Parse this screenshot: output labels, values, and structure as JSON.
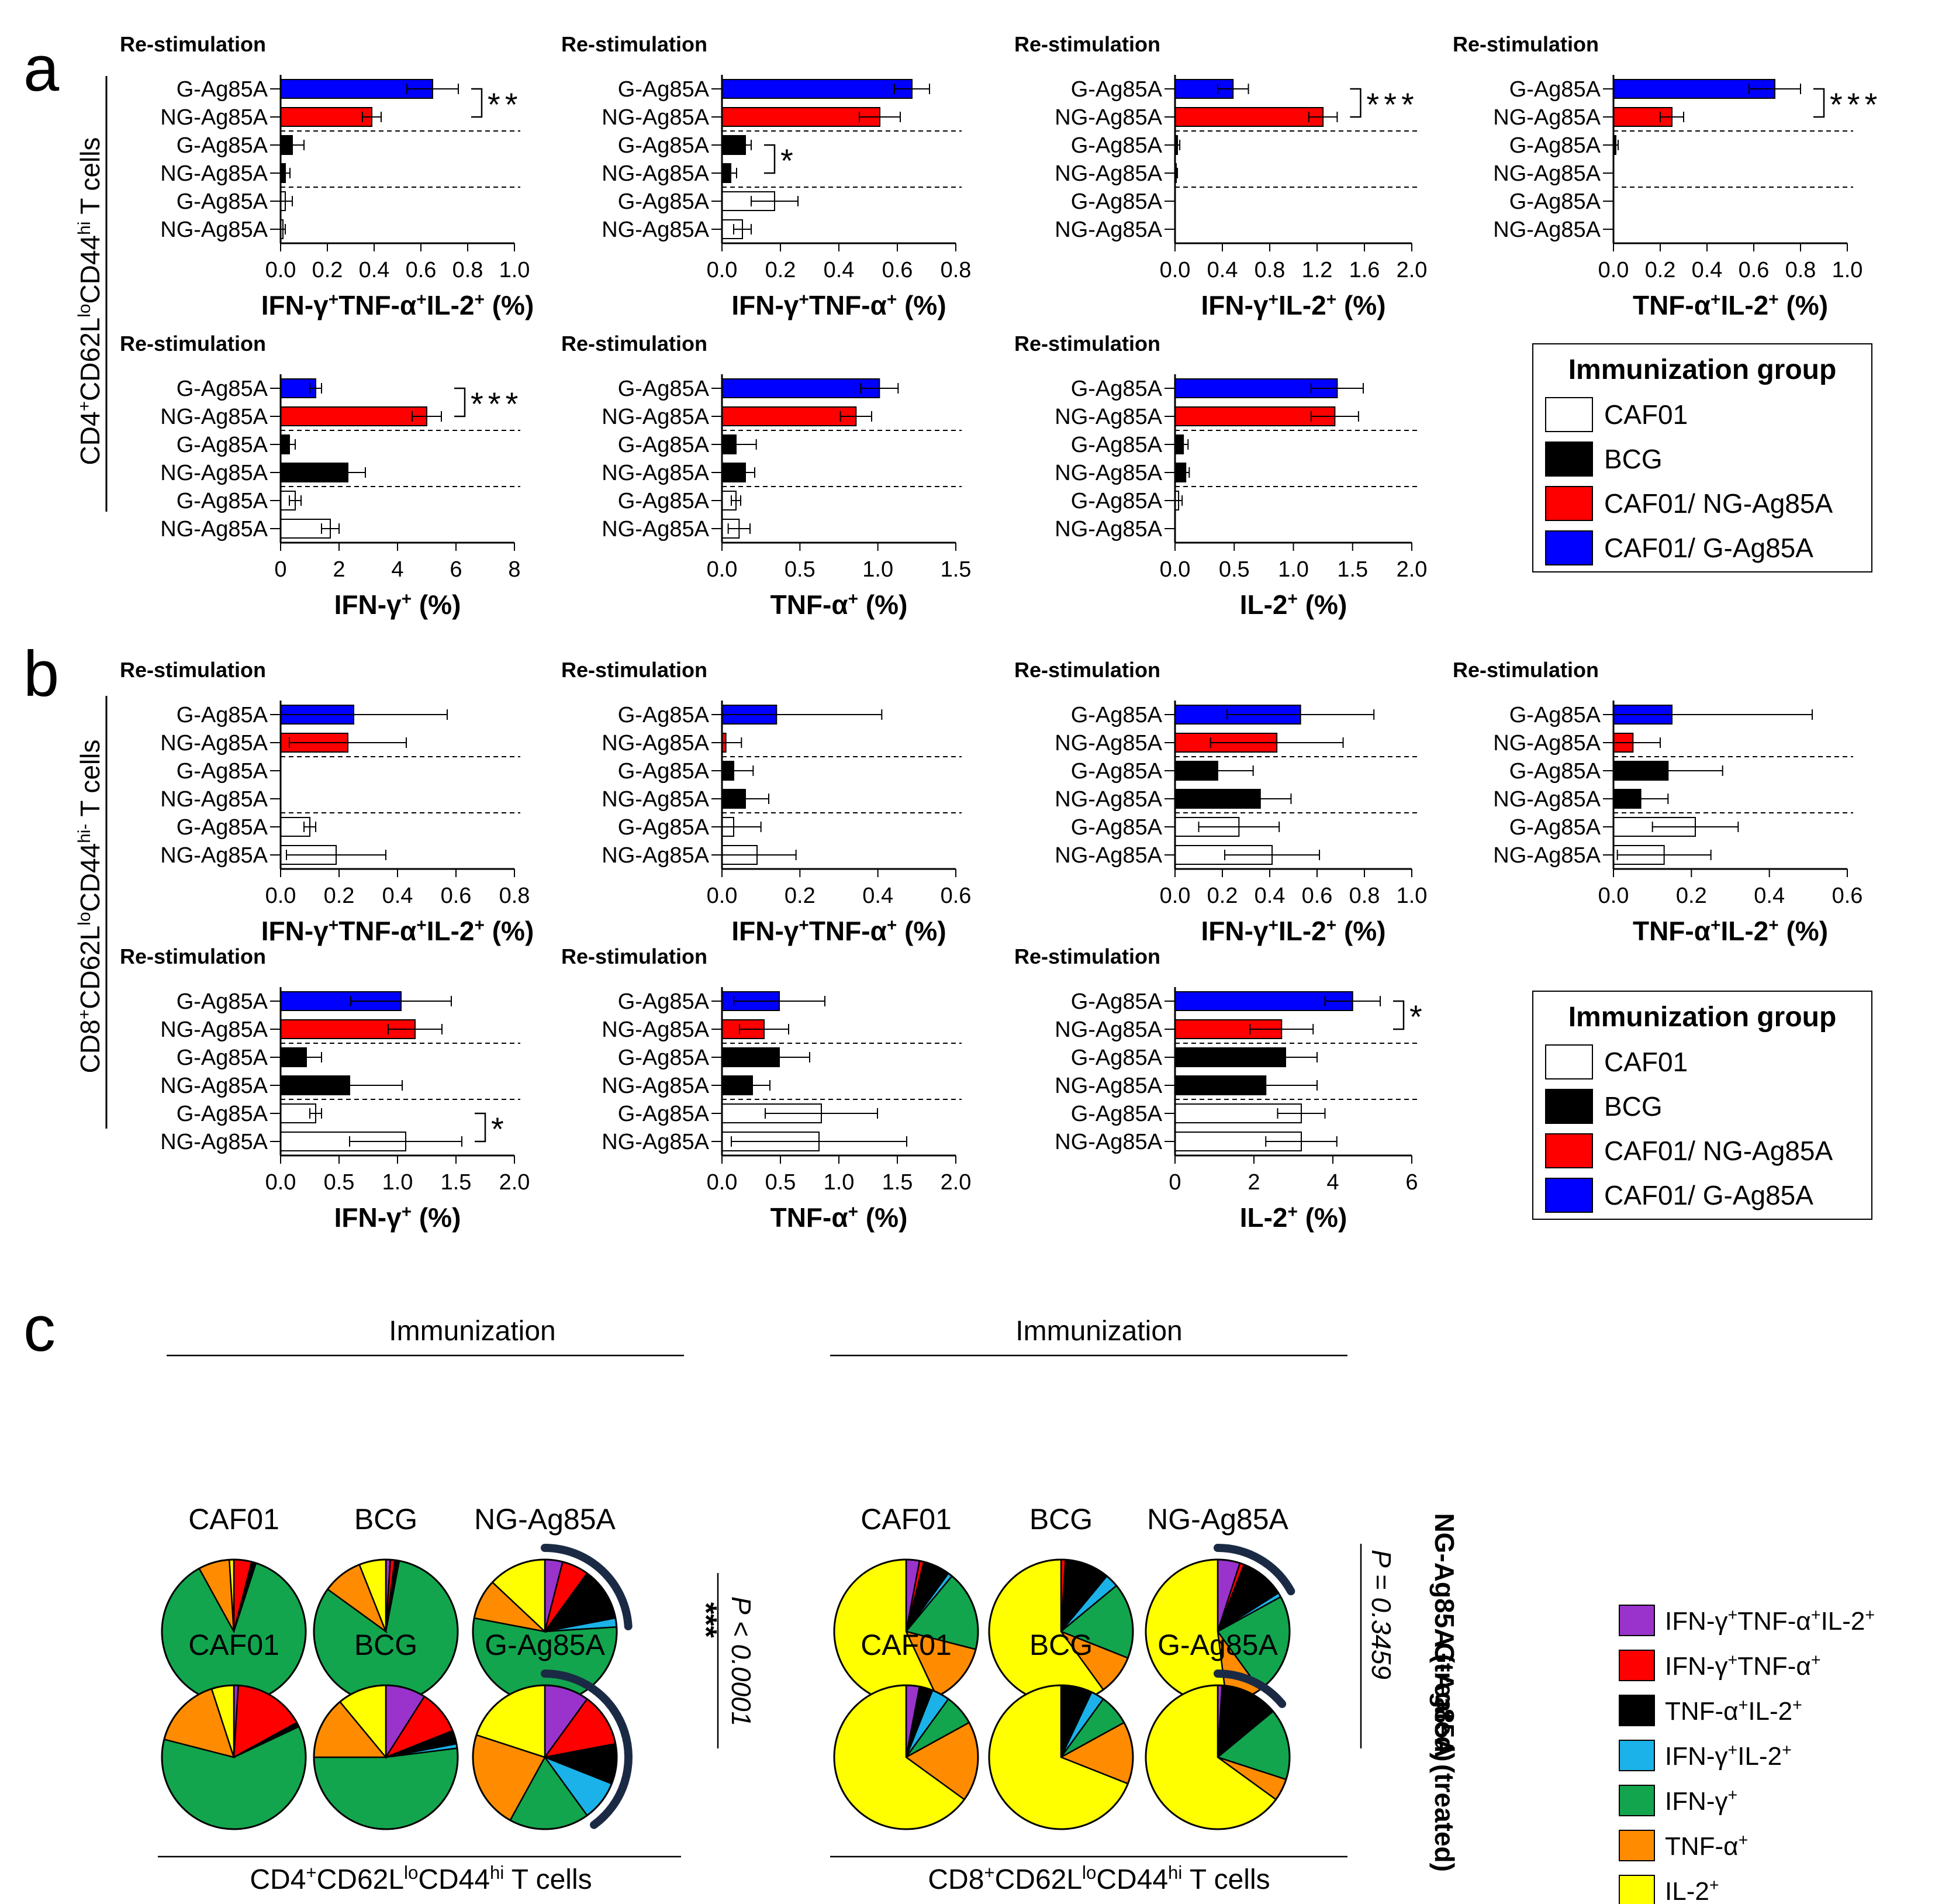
{
  "panel_labels": {
    "a": "a",
    "b": "b",
    "c": "c"
  },
  "common": {
    "restim_title": "Re-stimulation",
    "row_labels": [
      "G-Ag85A",
      "NG-Ag85A",
      "G-Ag85A",
      "NG-Ag85A",
      "G-Ag85A",
      "NG-Ag85A"
    ],
    "row_groups": [
      "CAF01/ G-Ag85A",
      "CAF01/ NG-Ag85A",
      "BCG",
      "BCG",
      "CAF01",
      "CAF01"
    ]
  },
  "side_labels": {
    "a": "CD4+CD62LloCD44hi T cells",
    "b": "CD8+CD62LloCD44hi- T cells"
  },
  "legend": {
    "title": "Immunization group",
    "items": [
      {
        "label": "CAF01",
        "color": "#ffffff"
      },
      {
        "label": "BCG",
        "color": "#000000"
      },
      {
        "label": "CAF01/ NG-Ag85A",
        "color": "#ff0000"
      },
      {
        "label": "CAF01/ G-Ag85A",
        "color": "#0000ff"
      }
    ]
  },
  "colors": {
    "CAF01": "#ffffff",
    "BCG": "#000000",
    "NG": "#ff0000",
    "G": "#0000ff",
    "c_triple": "#9933cc",
    "c_ifn_tnf": "#ff0000",
    "c_tnf_il2": "#000000",
    "c_ifn_il2": "#1ab2e8",
    "c_ifn": "#12a54e",
    "c_tnf": "#ff8c00",
    "c_il2": "#ffff00",
    "arc": "#1b2a44"
  },
  "chart_data": [
    {
      "id": "a1",
      "type": "bar",
      "xlabel": "IFN-γ+TNF-α+IL-2+ (%)",
      "xlim": [
        0,
        1.0
      ],
      "xticks": [
        "0.0",
        "0.2",
        "0.4",
        "0.6",
        "0.8",
        "1.0"
      ],
      "values": [
        0.65,
        0.39,
        0.05,
        0.02,
        0.02,
        0.01
      ],
      "errors": [
        0.11,
        0.04,
        0.05,
        0.02,
        0.03,
        0.01
      ],
      "sig": [
        {
          "label": "**",
          "rows": [
            0,
            1
          ]
        }
      ]
    },
    {
      "id": "a2",
      "type": "bar",
      "xlabel": "IFN-γ+TNF-α+ (%)",
      "xlim": [
        0,
        0.8
      ],
      "xticks": [
        "0.0",
        "0.2",
        "0.4",
        "0.6",
        "0.8"
      ],
      "values": [
        0.65,
        0.54,
        0.08,
        0.03,
        0.18,
        0.07
      ],
      "errors": [
        0.06,
        0.07,
        0.02,
        0.02,
        0.08,
        0.03
      ],
      "sig": [
        {
          "label": "*",
          "rows": [
            2,
            3
          ]
        }
      ]
    },
    {
      "id": "a3",
      "type": "bar",
      "xlabel": "IFN-γ+IL-2+ (%)",
      "xlim": [
        0,
        2.0
      ],
      "xticks": [
        "0.0",
        "0.4",
        "0.8",
        "1.2",
        "1.6",
        "2.0"
      ],
      "values": [
        0.49,
        1.25,
        0.02,
        0.01,
        0.0,
        0.0
      ],
      "errors": [
        0.13,
        0.12,
        0.02,
        0.01,
        0.0,
        0.0
      ],
      "sig": [
        {
          "label": "***",
          "rows": [
            0,
            1
          ]
        }
      ]
    },
    {
      "id": "a4",
      "type": "bar",
      "xlabel": "TNF-α+IL-2+ (%)",
      "xlim": [
        0,
        1.0
      ],
      "xticks": [
        "0.0",
        "0.2",
        "0.4",
        "0.6",
        "0.8",
        "1.0"
      ],
      "values": [
        0.69,
        0.25,
        0.01,
        0.0,
        0.0,
        0.0
      ],
      "errors": [
        0.11,
        0.05,
        0.01,
        0.0,
        0.0,
        0.0
      ],
      "sig": [
        {
          "label": "***",
          "rows": [
            0,
            1
          ]
        }
      ]
    },
    {
      "id": "a5",
      "type": "bar",
      "xlabel": "IFN-γ+ (%)",
      "xlim": [
        0,
        8
      ],
      "xticks": [
        "0",
        "2",
        "4",
        "6",
        "8"
      ],
      "values": [
        1.2,
        5.0,
        0.3,
        2.3,
        0.5,
        1.7
      ],
      "errors": [
        0.2,
        0.5,
        0.2,
        0.6,
        0.2,
        0.3
      ],
      "sig": [
        {
          "label": "***",
          "rows": [
            0,
            1
          ]
        }
      ]
    },
    {
      "id": "a6",
      "type": "bar",
      "xlabel": "TNF-α+ (%)",
      "xlim": [
        0,
        1.5
      ],
      "xticks": [
        "0.0",
        "0.5",
        "1.0",
        "1.5"
      ],
      "values": [
        1.01,
        0.86,
        0.09,
        0.15,
        0.09,
        0.11
      ],
      "errors": [
        0.12,
        0.1,
        0.13,
        0.06,
        0.03,
        0.07
      ],
      "sig": []
    },
    {
      "id": "a7",
      "type": "bar",
      "xlabel": "IL-2+ (%)",
      "xlim": [
        0,
        2.0
      ],
      "xticks": [
        "0.0",
        "0.5",
        "1.0",
        "1.5",
        "2.0"
      ],
      "values": [
        1.37,
        1.35,
        0.07,
        0.09,
        0.03,
        0.0
      ],
      "errors": [
        0.22,
        0.2,
        0.04,
        0.03,
        0.03,
        0.0
      ],
      "sig": []
    },
    {
      "id": "b1",
      "type": "bar",
      "xlabel": "IFN-γ+TNF-α+IL-2+ (%)",
      "xlim": [
        0,
        0.8
      ],
      "xticks": [
        "0.0",
        "0.2",
        "0.4",
        "0.6",
        "0.8"
      ],
      "values": [
        0.25,
        0.23,
        0.0,
        0.0,
        0.1,
        0.19
      ],
      "errors": [
        0.32,
        0.2,
        0.0,
        0.0,
        0.02,
        0.17
      ],
      "sig": []
    },
    {
      "id": "b2",
      "type": "bar",
      "xlabel": "IFN-γ+TNF-α+ (%)",
      "xlim": [
        0,
        0.6
      ],
      "xticks": [
        "0.0",
        "0.2",
        "0.4",
        "0.6"
      ],
      "values": [
        0.14,
        0.01,
        0.03,
        0.06,
        0.03,
        0.09
      ],
      "errors": [
        0.27,
        0.04,
        0.05,
        0.06,
        0.07,
        0.1
      ],
      "sig": []
    },
    {
      "id": "b3",
      "type": "bar",
      "xlabel": "IFN-γ+IL-2+ (%)",
      "xlim": [
        0,
        1.0
      ],
      "xticks": [
        "0.0",
        "0.2",
        "0.4",
        "0.6",
        "0.8",
        "1.0"
      ],
      "values": [
        0.53,
        0.43,
        0.18,
        0.36,
        0.27,
        0.41
      ],
      "errors": [
        0.31,
        0.28,
        0.15,
        0.13,
        0.17,
        0.2
      ],
      "sig": []
    },
    {
      "id": "b4",
      "type": "bar",
      "xlabel": "TNF-α+IL-2+ (%)",
      "xlim": [
        0,
        0.6
      ],
      "xticks": [
        "0.0",
        "0.2",
        "0.4",
        "0.6"
      ],
      "values": [
        0.15,
        0.05,
        0.14,
        0.07,
        0.21,
        0.13
      ],
      "errors": [
        0.36,
        0.07,
        0.14,
        0.07,
        0.11,
        0.12
      ],
      "sig": []
    },
    {
      "id": "b5",
      "type": "bar",
      "xlabel": "IFN-γ+ (%)",
      "xlim": [
        0,
        2.0
      ],
      "xticks": [
        "0.0",
        "0.5",
        "1.0",
        "1.5",
        "2.0"
      ],
      "values": [
        1.03,
        1.15,
        0.22,
        0.59,
        0.3,
        1.07
      ],
      "errors": [
        0.43,
        0.23,
        0.13,
        0.45,
        0.05,
        0.48
      ],
      "sig": [
        {
          "label": "*",
          "rows": [
            4,
            5
          ]
        }
      ]
    },
    {
      "id": "b6",
      "type": "bar",
      "xlabel": "TNF-α+ (%)",
      "xlim": [
        0,
        2.0
      ],
      "xticks": [
        "0.0",
        "0.5",
        "1.0",
        "1.5",
        "2.0"
      ],
      "values": [
        0.49,
        0.36,
        0.49,
        0.26,
        0.85,
        0.83
      ],
      "errors": [
        0.39,
        0.21,
        0.26,
        0.15,
        0.48,
        0.75
      ],
      "sig": []
    },
    {
      "id": "b7",
      "type": "bar",
      "xlabel": "IL-2+ (%)",
      "xlim": [
        0,
        6
      ],
      "xticks": [
        "0",
        "2",
        "4",
        "6"
      ],
      "values": [
        4.5,
        2.7,
        2.8,
        2.3,
        3.2,
        3.2
      ],
      "errors": [
        0.7,
        0.8,
        0.8,
        1.3,
        0.6,
        0.9
      ],
      "sig": [
        {
          "label": "*",
          "rows": [
            0,
            1
          ]
        }
      ]
    },
    {
      "id": "c",
      "type": "pie",
      "categories": [
        "IFN-γ+TNF-α+IL-2+",
        "IFN-γ+TNF-α+",
        "TNF-α+IL-2+",
        "IFN-γ+IL-2+",
        "IFN-γ+",
        "TNF-α+",
        "IL-2+"
      ],
      "immunization_label": "Immunization",
      "cd4_label": "CD4+CD62LloCD44hi T cells",
      "cd8_label": "CD8+CD62LloCD44hi T cells",
      "row_labels": [
        "NG-Ag85A (treated)",
        "G-Ag85A (treated)"
      ],
      "stats": [
        {
          "sig": "***",
          "p": "P < 0.0001"
        },
        {
          "sig": "",
          "p": "P = 0.3459"
        }
      ],
      "pies": [
        {
          "block": "CD4",
          "row": 0,
          "title": "CAF01",
          "values": [
            0,
            4,
            1,
            0,
            87,
            7,
            1
          ],
          "arc_fraction": 0
        },
        {
          "block": "CD4",
          "row": 0,
          "title": "BCG",
          "values": [
            1,
            1,
            1,
            0,
            82,
            9,
            6
          ],
          "arc_fraction": 0
        },
        {
          "block": "CD4",
          "row": 0,
          "title": "NG-Ag85A",
          "values": [
            4,
            6,
            12,
            2,
            54,
            9,
            13
          ],
          "arc_fraction": 0.24
        },
        {
          "block": "CD4",
          "row": 1,
          "title": "CAF01",
          "values": [
            1,
            16,
            1,
            0,
            61,
            16,
            5
          ],
          "arc_fraction": 0
        },
        {
          "block": "CD4",
          "row": 1,
          "title": "BCG",
          "values": [
            9,
            10,
            3,
            1,
            52,
            14,
            11
          ],
          "arc_fraction": 0
        },
        {
          "block": "CD4",
          "row": 1,
          "title": "G-Ag85A",
          "values": [
            10,
            12,
            9,
            9,
            18,
            22,
            20
          ],
          "arc_fraction": 0.4
        },
        {
          "block": "CD8",
          "row": 0,
          "title": "CAF01",
          "values": [
            3,
            1,
            6,
            1,
            18,
            14,
            57
          ],
          "arc_fraction": 0
        },
        {
          "block": "CD8",
          "row": 0,
          "title": "BCG",
          "values": [
            0,
            1,
            10,
            3,
            17,
            9,
            60
          ],
          "arc_fraction": 0
        },
        {
          "block": "CD8",
          "row": 0,
          "title": "NG-Ag85A",
          "values": [
            5,
            1,
            10,
            1,
            23,
            8,
            52
          ],
          "arc_fraction": 0.17
        },
        {
          "block": "CD8",
          "row": 1,
          "title": "CAF01",
          "values": [
            3,
            0,
            3,
            4,
            7,
            18,
            65
          ],
          "arc_fraction": 0
        },
        {
          "block": "CD8",
          "row": 1,
          "title": "BCG",
          "values": [
            0,
            0,
            7,
            3,
            7,
            14,
            69
          ],
          "arc_fraction": 0
        },
        {
          "block": "CD8",
          "row": 1,
          "title": "G-Ag85A",
          "values": [
            1,
            0,
            13,
            0,
            16,
            5,
            65
          ],
          "arc_fraction": 0.14
        }
      ]
    }
  ]
}
